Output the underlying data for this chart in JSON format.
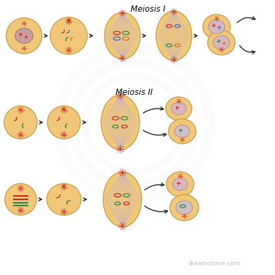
{
  "background_color": "#ffffff",
  "cell_fill": "#f0c878",
  "cell_edge": "#c8a050",
  "nucleus_fill_1": "#d4a0a0",
  "nucleus_fill_2": "#e0c0c0",
  "spindle_color": "#c8b8d0",
  "arrow_color": "#222222",
  "title1": "Meiosis I",
  "title2": "Meiosis II",
  "title_fontsize": 8.5,
  "watermark": "dreamstime.com",
  "watermark_color": "#bbbbbb",
  "watermark_fontsize": 6.5,
  "red": "#cc2222",
  "green": "#228844",
  "blue": "#3366cc",
  "orange": "#cc7722"
}
